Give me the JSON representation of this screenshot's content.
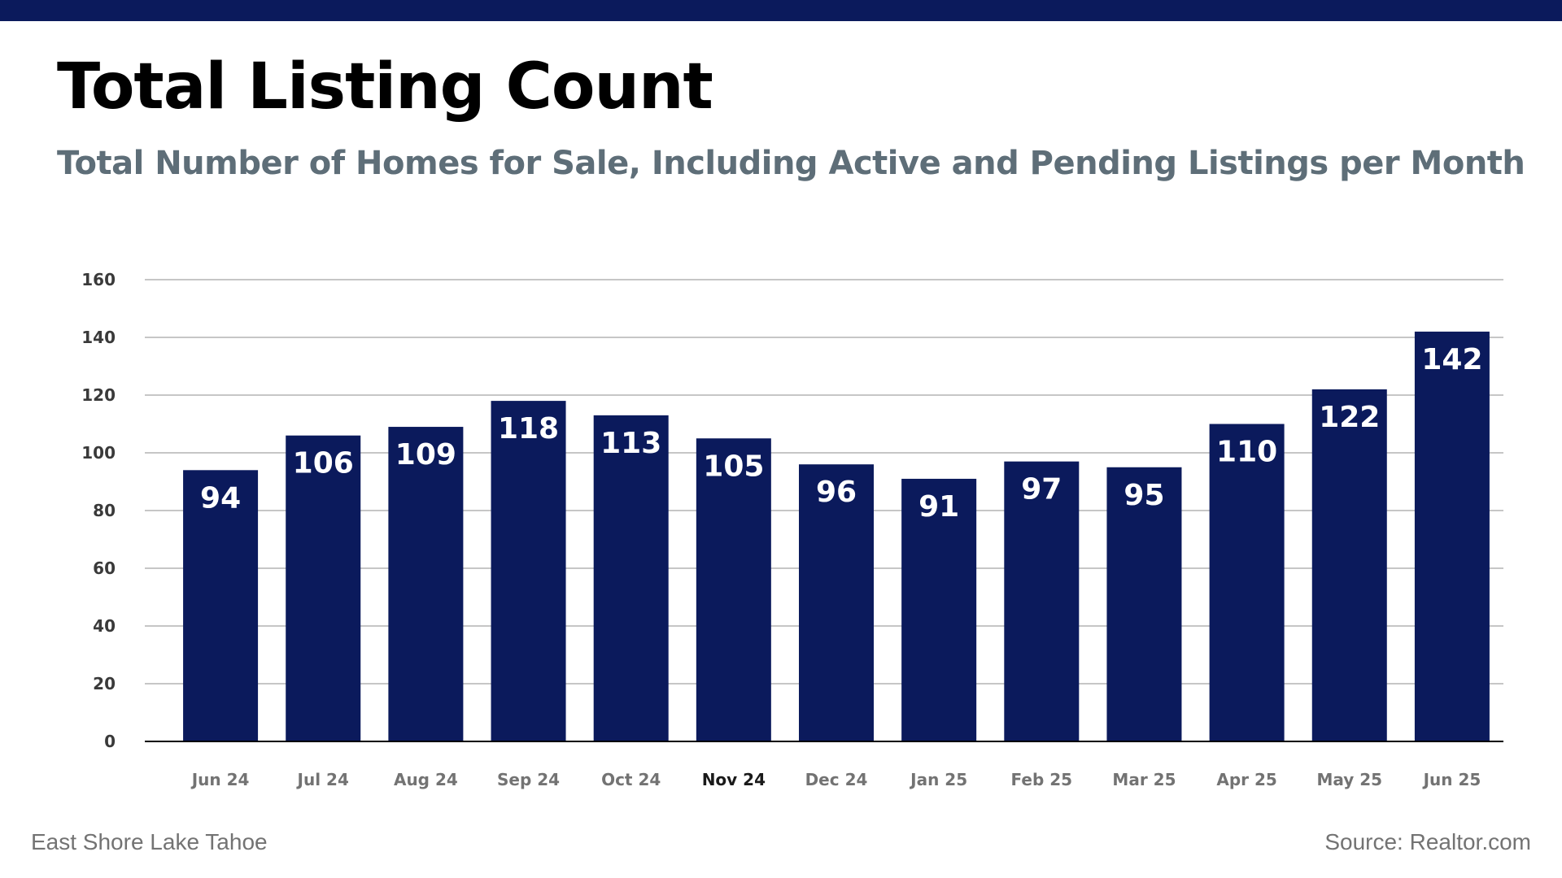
{
  "header": {
    "title": "Total Listing Count",
    "subtitle": "Total Number of Homes for Sale, Including Active and Pending Listings per Month"
  },
  "footer": {
    "left": "East Shore Lake Tahoe",
    "right": "Source: Realtor.com"
  },
  "colors": {
    "bar": "#0b1a5c",
    "band": "#0b1a5c",
    "grid": "#b3b3b3",
    "subtitle": "#5e6e78"
  },
  "chart_data": {
    "type": "bar",
    "title": "Total Listing Count",
    "subtitle": "Total Number of Homes for Sale, Including Active and Pending Listings per Month",
    "categories": [
      "Jun 24",
      "Jul 24",
      "Aug 24",
      "Sep 24",
      "Oct 24",
      "Nov 24",
      "Dec 24",
      "Jan 25",
      "Feb 25",
      "Mar 25",
      "Apr 25",
      "May 25",
      "Jun 25"
    ],
    "values": [
      94,
      106,
      109,
      118,
      113,
      105,
      96,
      91,
      97,
      95,
      110,
      122,
      142
    ],
    "highlighted_category": "Nov 24",
    "ylim": [
      0,
      160
    ],
    "yticks": [
      0,
      20,
      40,
      60,
      80,
      100,
      120,
      140,
      160
    ],
    "grid": true,
    "data_labels": true,
    "legend": "none"
  }
}
